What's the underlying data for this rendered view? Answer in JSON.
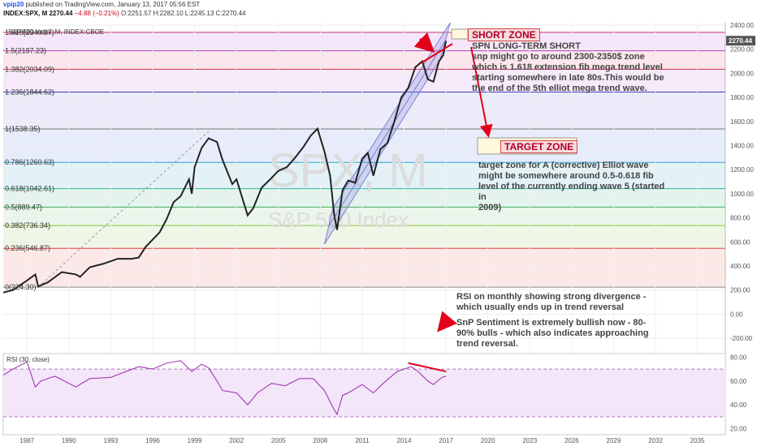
{
  "header": {
    "user": "vpip20",
    "published": "published on TradingView.com, January 13, 2017 05:56 EST",
    "ticker": "INDEX:SPX, M",
    "last": "2270.44",
    "change": "−4.88 (−0.21%)",
    "ohlc": "O:2251.57 H:2282.10 L:2245.13 C:2270.44",
    "symbol": "S&P 500 Index, M, INDEX:CBOE"
  },
  "watermark": {
    "big": "SPX, M",
    "small": "S&P 500 Index"
  },
  "colors": {
    "price": "#222222",
    "rsi": "#9c27b0",
    "arrow": "#e3001b",
    "channel": "#7b7fd6",
    "watermark": "#d9d9d9"
  },
  "annotations": {
    "short_zone": "SHORT ZONE",
    "target_zone": "TARGET ZONE",
    "short_text": [
      "SPN LONG-TERM SHORT",
      "snp might go to around 2300-2350$ zone",
      "which is 1.618 extension fib mega trend level",
      "starting somewhere in late 80s.This would be",
      "the end of the 5th elliot mega trend wave."
    ],
    "target_text": [
      "target zone for A (corrective) Elliot wave",
      "might be somewhere around 0.5-0.618 fib",
      "level of the currently ending wave 5 (started",
      "in",
      "2009)"
    ],
    "rsi_text": [
      "RSI on monthly showing strong divergence -",
      "which usually ends up in trend reversal"
    ],
    "sentiment_text": [
      "SnP Sentiment is extremely bullish now - 80-",
      "90% bulls - which also indicates approaching",
      "trend reversal."
    ]
  },
  "chart_data": [
    {
      "type": "line",
      "title": "S&P 500 Index, M, INDEX:CBOE",
      "ylim": [
        -300,
        2420
      ],
      "xlim": [
        1985.3,
        2037.0
      ],
      "x_ticks": [
        "1987",
        "1990",
        "1993",
        "1996",
        "1999",
        "2002",
        "2005",
        "2008",
        "2011",
        "2014",
        "2017",
        "2020",
        "2023",
        "2026",
        "2029",
        "2032",
        "2035"
      ],
      "y_ticks": [
        -200,
        0,
        200,
        400,
        600,
        800,
        1000,
        1200,
        1400,
        1600,
        1800,
        2000,
        2200,
        2400
      ],
      "last_price_label": "2270.44",
      "fib_levels": [
        {
          "label": "0(224.30)",
          "value": 224.3
        },
        {
          "label": "0.236(546.87)",
          "value": 546.87
        },
        {
          "label": "0.382(736.34)",
          "value": 736.34
        },
        {
          "label": "0.5(889.47)",
          "value": 889.47
        },
        {
          "label": "0.618(1042.61)",
          "value": 1042.61
        },
        {
          "label": "0.786(1260.63)",
          "value": 1260.63
        },
        {
          "label": "1(1538.35)",
          "value": 1538.35
        },
        {
          "label": "1.236(1844.62)",
          "value": 1844.62
        },
        {
          "label": "1.382(2034.09)",
          "value": 2034.09
        },
        {
          "label": "1.5(2187.23)",
          "value": 2187.23
        },
        {
          "label": "1.618(2340.37)",
          "value": 2340.37
        }
      ],
      "series": [
        {
          "x": [
            1985.3,
            1986.0,
            1986.5,
            1987.0,
            1987.6,
            1987.8,
            1988.5,
            1989.5,
            1990.5,
            1990.8,
            1991.5,
            1992.5,
            1993.5,
            1994.5,
            1995.0,
            1995.5,
            1996.0,
            1996.5,
            1997.0,
            1997.5,
            1998.0,
            1998.6,
            1998.8,
            1999.0,
            1999.5,
            2000.0,
            2000.6,
            2001.0,
            2001.7,
            2002.0,
            2002.8,
            2003.2,
            2003.8,
            2004.5,
            2005.0,
            2005.6,
            2006.2,
            2006.8,
            2007.3,
            2007.8,
            2008.3,
            2008.7,
            2009.0,
            2009.2,
            2009.6,
            2010.0,
            2010.5,
            2011.0,
            2011.4,
            2011.8,
            2012.3,
            2012.8,
            2013.3,
            2013.8,
            2014.3,
            2014.8,
            2015.3,
            2015.7,
            2016.1,
            2016.5,
            2016.8,
            2017.0
          ],
          "y": [
            180,
            200,
            240,
            280,
            330,
            230,
            265,
            350,
            330,
            310,
            390,
            420,
            460,
            460,
            470,
            560,
            620,
            680,
            790,
            930,
            980,
            1120,
            1000,
            1220,
            1380,
            1460,
            1430,
            1280,
            1080,
            1120,
            820,
            880,
            1050,
            1130,
            1190,
            1220,
            1300,
            1390,
            1480,
            1540,
            1350,
            1150,
            820,
            700,
            1030,
            1110,
            1090,
            1290,
            1340,
            1150,
            1370,
            1420,
            1600,
            1800,
            1880,
            2050,
            2100,
            1950,
            1930,
            2100,
            2150,
            2270
          ]
        },
        {
          "name": "RSI (30, close)",
          "ylim": [
            15,
            83
          ],
          "y_ticks": [
            20,
            40,
            60,
            80
          ],
          "x": [
            1985.3,
            1986.0,
            1987.0,
            1987.6,
            1988.0,
            1989.0,
            1990.5,
            1991.5,
            1993.0,
            1995.0,
            1996.0,
            1997.0,
            1998.0,
            1998.8,
            1999.5,
            2000.0,
            2000.6,
            2001.0,
            2002.0,
            2002.8,
            2003.5,
            2004.5,
            2005.5,
            2006.5,
            2007.5,
            2008.3,
            2008.9,
            2009.2,
            2009.6,
            2010.0,
            2011.0,
            2011.8,
            2012.5,
            2013.5,
            2014.5,
            2015.0,
            2015.7,
            2016.1,
            2016.7,
            2017.0
          ],
          "y": [
            65,
            70,
            76,
            55,
            60,
            64,
            55,
            62,
            63,
            72,
            70,
            75,
            77,
            68,
            74,
            71,
            60,
            52,
            50,
            40,
            50,
            58,
            56,
            62,
            62,
            52,
            38,
            32,
            48,
            50,
            57,
            50,
            58,
            68,
            72,
            68,
            60,
            57,
            63,
            64
          ]
        }
      ]
    }
  ]
}
